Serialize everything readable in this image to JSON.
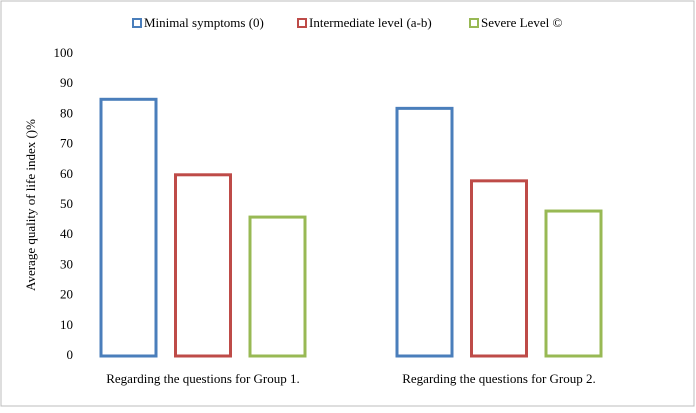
{
  "chart_data": {
    "type": "bar",
    "y_label": "Average quality of life index ()%",
    "categories": [
      "Regarding the questions  for Group 1.",
      "Regarding the questions  for Group 2."
    ],
    "series": [
      {
        "name": "Minimal symptoms  (0)",
        "color": "#4a7ebb",
        "values": [
          85,
          82
        ]
      },
      {
        "name": "Intermediate level  (a-b)",
        "color": "#be4b48",
        "values": [
          60,
          58
        ]
      },
      {
        "name": "Severe Level  ©",
        "color": "#98b954",
        "values": [
          46,
          48
        ]
      }
    ],
    "ylim": [
      0,
      100
    ],
    "yticks": [
      0,
      10,
      20,
      30,
      40,
      50,
      60,
      70,
      80,
      90,
      100
    ],
    "legend": "top"
  }
}
